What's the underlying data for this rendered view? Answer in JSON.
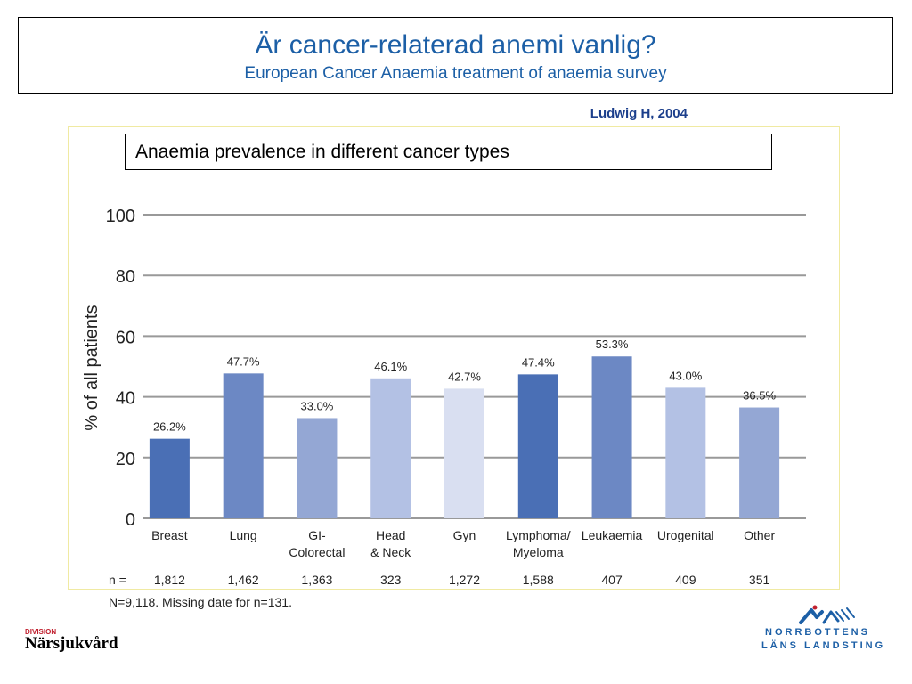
{
  "slide": {
    "title": "Är cancer-relaterad anemi vanlig?",
    "subtitle": "European Cancer Anaemia  treatment of anaemia survey",
    "citation": "Ludwig H, 2004",
    "footnote": "N=9,118. Missing date for n=131.",
    "division_label": "DIVISION",
    "division_name": "Närsjukvård",
    "logo_line1": "NORRBOTTENS",
    "logo_line2": "LÄNS LANDSTING",
    "logo_icon": "norrbotten-logo-icon"
  },
  "chart_data": {
    "type": "bar",
    "title": "Anaemia prevalence in different cancer types",
    "ylabel": "% of all patients",
    "xlabel": "",
    "ylim": [
      0,
      100
    ],
    "yticks": [
      0,
      20,
      40,
      60,
      80,
      100
    ],
    "grid": true,
    "categories": [
      [
        "Breast"
      ],
      [
        "Lung"
      ],
      [
        "GI-",
        "Colorectal"
      ],
      [
        "Head",
        "& Neck"
      ],
      [
        "Gyn"
      ],
      [
        "Lymphoma/",
        "Myeloma"
      ],
      [
        "Leukaemia"
      ],
      [
        "Urogenital"
      ],
      [
        "Other"
      ]
    ],
    "values": [
      26.2,
      47.7,
      33.0,
      46.1,
      42.7,
      47.4,
      53.3,
      43.0,
      36.5
    ],
    "value_labels": [
      "26.2%",
      "47.7%",
      "33.0%",
      "46.1%",
      "42.7%",
      "47.4%",
      "53.3%",
      "43.0%",
      "36.5%"
    ],
    "colors": [
      "#4a6fb5",
      "#6c88c4",
      "#94a7d4",
      "#b3c1e4",
      "#d9dff1",
      "#4a6fb5",
      "#6c88c4",
      "#b3c1e4",
      "#94a7d4"
    ],
    "n_label": "n =",
    "n_values": [
      "1,812",
      "1,462",
      "1,363",
      "323",
      "1,272",
      "1,588",
      "407",
      "409",
      "351"
    ]
  }
}
